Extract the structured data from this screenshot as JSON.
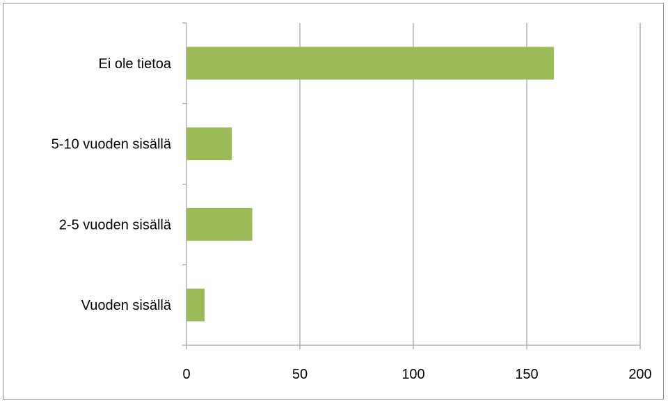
{
  "chart_data": {
    "type": "bar",
    "orientation": "horizontal",
    "categories": [
      "Ei ole tietoa",
      "5-10 vuoden sisällä",
      "2-5 vuoden sisällä",
      "Vuoden sisällä"
    ],
    "values": [
      162,
      20,
      29,
      8
    ],
    "xlim": [
      0,
      200
    ],
    "xticks": [
      0,
      50,
      100,
      150,
      200
    ],
    "title": "",
    "xlabel": "",
    "ylabel": "",
    "grid": "vertical",
    "legend": "none",
    "bar_color": "#9BBB59",
    "gridline_color": "#8C8C8C"
  }
}
